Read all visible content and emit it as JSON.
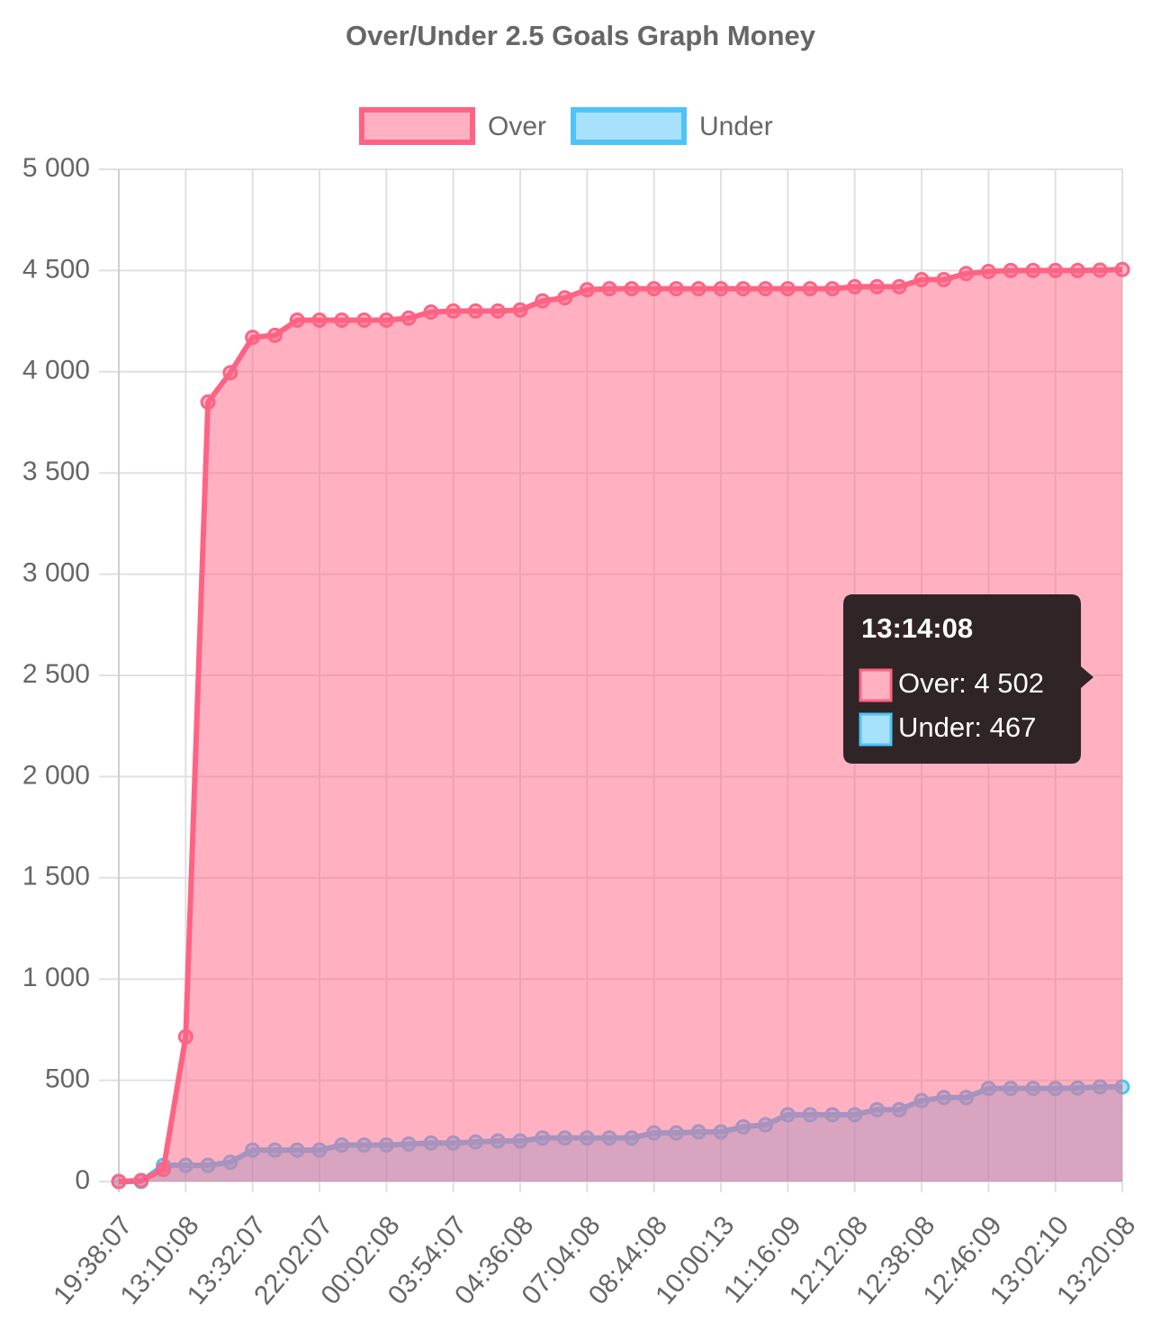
{
  "chart_data": {
    "type": "line",
    "title": "Over/Under 2.5 Goals Graph Money",
    "categories": [
      "19:38:07",
      null,
      null,
      "13:10:08",
      null,
      null,
      "13:32:07",
      null,
      null,
      "22:02:07",
      null,
      null,
      "00:02:08",
      null,
      null,
      "03:54:07",
      null,
      null,
      "04:36:08",
      null,
      null,
      "07:04:08",
      null,
      null,
      "08:44:08",
      null,
      null,
      "10:00:13",
      null,
      null,
      "11:16:09",
      null,
      null,
      "12:12:08",
      null,
      null,
      "12:38:08",
      null,
      null,
      "12:46:09",
      null,
      null,
      "13:02:10",
      null,
      null,
      "13:20:08"
    ],
    "series": [
      {
        "name": "Over",
        "color": "#ff6384",
        "values": [
          0,
          5,
          60,
          715,
          3850,
          3995,
          4170,
          4180,
          4255,
          4255,
          4255,
          4255,
          4255,
          4265,
          4295,
          4300,
          4300,
          4300,
          4305,
          4350,
          4365,
          4405,
          4410,
          4410,
          4410,
          4410,
          4410,
          4410,
          4410,
          4410,
          4410,
          4410,
          4410,
          4420,
          4420,
          4420,
          4455,
          4455,
          4485,
          4495,
          4500,
          4500,
          4500,
          4500,
          4502,
          4505
        ]
      },
      {
        "name": "Under",
        "color": "#4fc3f7",
        "values": [
          0,
          0,
          80,
          80,
          80,
          95,
          155,
          155,
          155,
          155,
          180,
          180,
          180,
          185,
          190,
          190,
          195,
          200,
          200,
          215,
          215,
          215,
          215,
          215,
          240,
          240,
          245,
          245,
          270,
          280,
          330,
          330,
          330,
          330,
          355,
          355,
          400,
          415,
          415,
          460,
          460,
          460,
          460,
          462,
          467,
          467
        ]
      }
    ],
    "ylim": [
      0,
      5000
    ],
    "yticks": [
      0,
      500,
      {
        "value": 1000,
        "label": "1 000"
      },
      {
        "value": 1500,
        "label": "1 500"
      },
      {
        "value": 2000,
        "label": "2 000"
      },
      {
        "value": 2500,
        "label": "2 500"
      },
      {
        "value": 3000,
        "label": "3 000"
      },
      {
        "value": 3500,
        "label": "3 500"
      },
      {
        "value": 4000,
        "label": "4 000"
      },
      {
        "value": 4500,
        "label": "4 500"
      },
      {
        "value": 5000,
        "label": "5 000"
      }
    ],
    "grid": true,
    "legend": "top",
    "tooltip": {
      "title": "13:14:08",
      "items": [
        "Over: 4 502",
        "Under: 467"
      ]
    }
  }
}
